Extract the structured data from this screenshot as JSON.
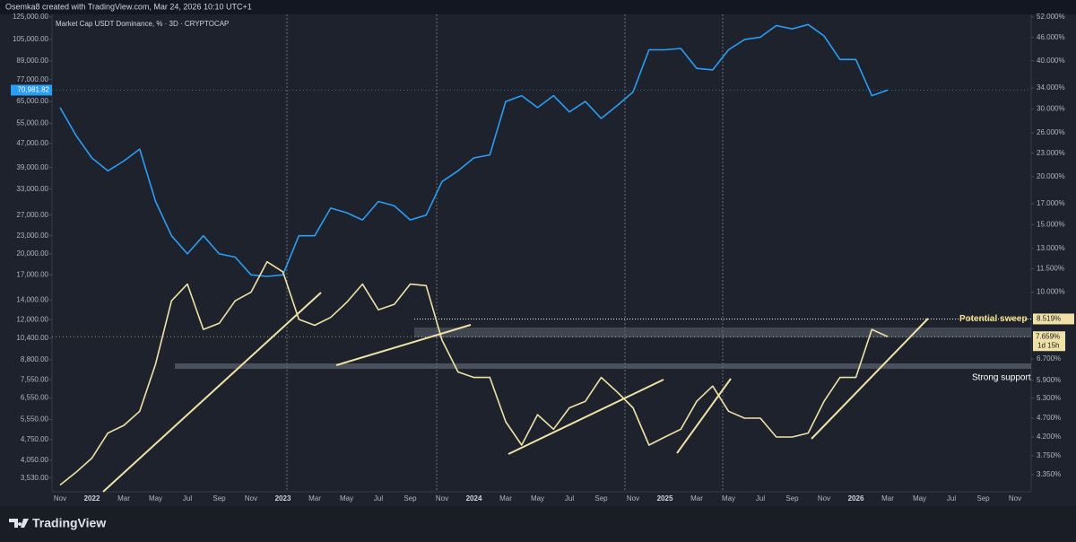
{
  "header": "Osemka8 created with TradingView.com, Mar 24, 2026 10:10 UTC+1",
  "footer": "TradingView",
  "chart_data": {
    "type": "line",
    "title": "Market Cap USDT Dominance, % · 3D · CRYPTOCAP",
    "log_scale": true,
    "categories": [
      "Nov",
      null,
      "2022",
      null,
      "Mar",
      null,
      "May",
      null,
      "Jul",
      null,
      "Sep",
      null,
      "Nov",
      null,
      "2023",
      null,
      "Mar",
      null,
      "May",
      null,
      "Jul",
      null,
      "Sep",
      null,
      "Nov",
      null,
      "2024",
      null,
      "Mar",
      null,
      "May",
      null,
      "Jul",
      null,
      "Sep",
      null,
      "Nov",
      null,
      "2025",
      null,
      "Mar",
      null,
      "May",
      null,
      "Jul",
      null,
      "Sep",
      null,
      "Nov",
      null,
      "2026",
      null,
      "Mar",
      null,
      "May",
      null,
      "Jul",
      null,
      "Sep",
      null,
      "Nov",
      null
    ],
    "series": [
      {
        "color": "#2a9df4",
        "axis": "y",
        "values": [
          62000,
          50000,
          42000,
          38000,
          41000,
          45000,
          30000,
          23000,
          20000,
          23000,
          20000,
          19500,
          17000,
          16800,
          17000,
          23000,
          23000,
          28500,
          27500,
          26000,
          30000,
          29000,
          26000,
          27000,
          35000,
          38000,
          42000,
          43000,
          65000,
          68000,
          62000,
          68000,
          60000,
          65000,
          57000,
          63000,
          70000,
          97000,
          97000,
          98000,
          84000,
          83000,
          97000,
          105000,
          107000,
          117000,
          114000,
          118000,
          108000,
          90000,
          90000,
          68000,
          71000,
          null,
          null,
          null,
          null,
          null,
          null,
          null,
          null,
          null
        ]
      },
      {
        "color": "#f0e2a6",
        "axis": "y2",
        "values": [
          3.15,
          3.4,
          3.7,
          4.3,
          4.5,
          4.9,
          6.5,
          9.5,
          10.5,
          8.0,
          8.3,
          9.5,
          10.0,
          12.0,
          11.3,
          8.5,
          8.2,
          8.6,
          9.4,
          10.5,
          9.0,
          9.3,
          10.5,
          10.4,
          7.5,
          6.2,
          6.0,
          6.0,
          4.6,
          4.0,
          4.8,
          4.4,
          5.0,
          5.2,
          6.0,
          5.5,
          5.0,
          4.0,
          4.2,
          4.4,
          5.2,
          5.7,
          4.9,
          4.7,
          4.7,
          4.2,
          4.2,
          4.3,
          5.2,
          6.0,
          6.0,
          8.0,
          7.659,
          null,
          null,
          null,
          null,
          null,
          null,
          null,
          null,
          null
        ]
      }
    ],
    "ylim": [
      3173,
      127600
    ],
    "yticks": [
      {
        "value": 125000,
        "label": "125,000.00"
      },
      {
        "value": 105000,
        "label": "105,000.00"
      },
      {
        "value": 89000,
        "label": "89,000.00"
      },
      {
        "value": 77000,
        "label": "77,000.00"
      },
      {
        "value": 65000,
        "label": "65,000.00"
      },
      {
        "value": 55000,
        "label": "55,000.00"
      },
      {
        "value": 47000,
        "label": "47,000.00"
      },
      {
        "value": 39000,
        "label": "39,000.00"
      },
      {
        "value": 33000,
        "label": "33,000.00"
      },
      {
        "value": 27000,
        "label": "27,000.00"
      },
      {
        "value": 23000,
        "label": "23,000.00"
      },
      {
        "value": 20000,
        "label": "20,000.00"
      },
      {
        "value": 17000,
        "label": "17,000.00"
      },
      {
        "value": 14000,
        "label": "14,000.00"
      },
      {
        "value": 12000,
        "label": "12,000.00"
      },
      {
        "value": 10400,
        "label": "10,400.00"
      },
      {
        "value": 8800,
        "label": "8,800.00"
      },
      {
        "value": 7550,
        "label": "7,550.00"
      },
      {
        "value": 6550,
        "label": "6,550.00"
      },
      {
        "value": 5550,
        "label": "5,550.00"
      },
      {
        "value": 4750,
        "label": "4,750.00"
      },
      {
        "value": 4050,
        "label": "4,050.00"
      },
      {
        "value": 3530,
        "label": "3,530.00"
      }
    ],
    "y2lim": [
      3.025,
      52.85
    ],
    "y2ticks": [
      {
        "value": 52,
        "label": "52.000%"
      },
      {
        "value": 46,
        "label": "46.000%"
      },
      {
        "value": 40,
        "label": "40.000%"
      },
      {
        "value": 34,
        "label": "34.000%"
      },
      {
        "value": 30,
        "label": "30.000%"
      },
      {
        "value": 26,
        "label": "26.000%"
      },
      {
        "value": 23,
        "label": "23.000%"
      },
      {
        "value": 20,
        "label": "20.000%"
      },
      {
        "value": 17,
        "label": "17.000%"
      },
      {
        "value": 15,
        "label": "15.000%"
      },
      {
        "value": 13,
        "label": "13.000%"
      },
      {
        "value": 11.5,
        "label": "11.500%"
      },
      {
        "value": 10,
        "label": "10.000%"
      },
      {
        "value": 6.7,
        "label": "6.700%"
      },
      {
        "value": 5.9,
        "label": "5.900%"
      },
      {
        "value": 5.3,
        "label": "5.300%"
      },
      {
        "value": 4.7,
        "label": "4.700%"
      },
      {
        "value": 4.2,
        "label": "4.200%"
      },
      {
        "value": 3.75,
        "label": "3.750%"
      },
      {
        "value": 3.35,
        "label": "3.350%"
      }
    ],
    "price_labels": [
      {
        "value": 70981.82,
        "label": "70,981.82",
        "axis": "y",
        "color": "#2a9df4"
      },
      {
        "value": 7.659,
        "label": "7.659%",
        "axis": "y2",
        "color": "#f0e2a6",
        "countdown": "1d 15h"
      }
    ],
    "levels": [
      {
        "value": 8.519,
        "label": "8.519%",
        "text": "Potential sweep"
      }
    ],
    "annotations": [
      "Strong support"
    ]
  }
}
